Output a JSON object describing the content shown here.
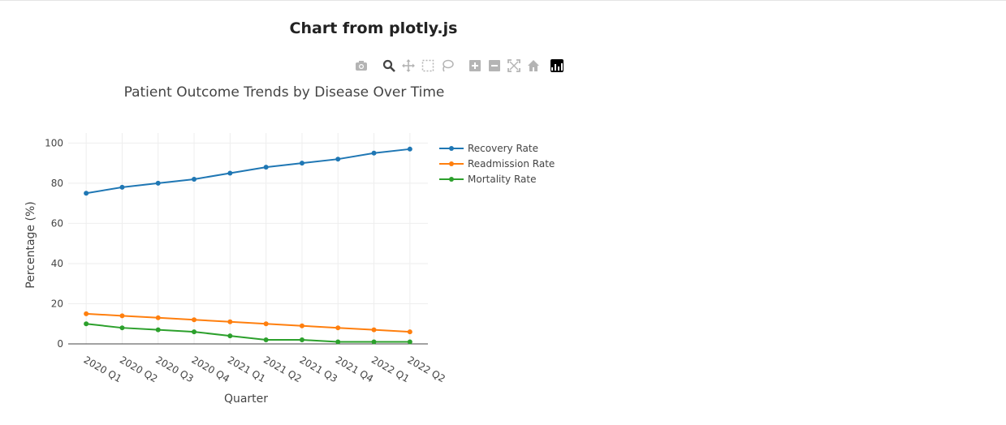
{
  "page": {
    "heading": "Chart from plotly.js"
  },
  "modebar": {
    "buttons": [
      "camera-icon",
      "zoom-icon",
      "pan-icon",
      "box-select-icon",
      "lasso-select-icon",
      "zoom-in-icon",
      "zoom-out-icon",
      "autoscale-icon",
      "reset-axes-icon",
      "plotly-logo-icon"
    ],
    "icon_color": "#b4b4b4",
    "active_color": "#444444"
  },
  "chart_data": {
    "type": "line",
    "title": "Patient Outcome Trends by Disease Over Time",
    "xlabel": "Quarter",
    "ylabel": "Percentage (%)",
    "categories": [
      "2020 Q1",
      "2020 Q2",
      "2020 Q3",
      "2020 Q4",
      "2021 Q1",
      "2021 Q2",
      "2021 Q3",
      "2021 Q4",
      "2022 Q1",
      "2022 Q2"
    ],
    "ylim": [
      0,
      105
    ],
    "yticks": [
      0,
      20,
      40,
      60,
      80,
      100
    ],
    "grid": true,
    "legend_position": "top-right",
    "series": [
      {
        "name": "Recovery Rate",
        "color": "#1f77b4",
        "values": [
          75,
          78,
          80,
          82,
          85,
          88,
          90,
          92,
          95,
          97
        ]
      },
      {
        "name": "Readmission Rate",
        "color": "#ff7f0e",
        "values": [
          15,
          14,
          13,
          12,
          11,
          10,
          9,
          8,
          7,
          6
        ]
      },
      {
        "name": "Mortality Rate",
        "color": "#2ca02c",
        "values": [
          10,
          8,
          7,
          6,
          4,
          2,
          2,
          1,
          1,
          1
        ]
      }
    ]
  }
}
